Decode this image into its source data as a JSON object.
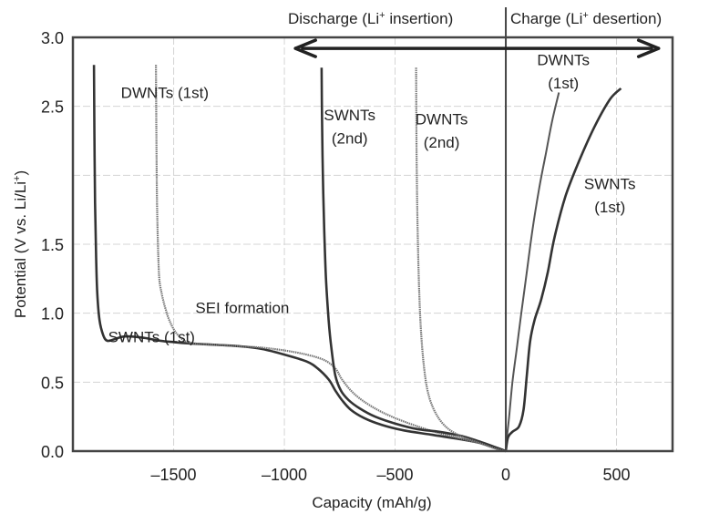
{
  "chart_data": {
    "type": "line",
    "title": "",
    "header": {
      "discharge_label": "Discharge (Li",
      "discharge_sup": "+",
      "discharge_suffix": " insertion)",
      "charge_label": "Charge (Li",
      "charge_sup": "+",
      "charge_suffix": " desertion)"
    },
    "xlabel": "Capacity (mAh/g)",
    "ylabel": "Potential (V vs. Li/Li",
    "ylabel_sup": "+",
    "ylabel_suffix": ")",
    "xlim": [
      -1955,
      753
    ],
    "ylim": [
      0.0,
      3.0
    ],
    "xticks": [
      -1500,
      -1000,
      -500,
      0,
      500
    ],
    "xtick_labels": [
      "–1500",
      "–1000",
      "–500",
      "0",
      "500"
    ],
    "yticks": [
      0.0,
      0.5,
      1.0,
      1.5,
      2.0,
      2.5,
      3.0
    ],
    "ytick_labels": [
      "0.0",
      "0.5",
      "1.0",
      "1.5",
      "",
      "2.5",
      "3.0"
    ],
    "grid": true,
    "divider_x": 0,
    "arrow": {
      "from": -950,
      "to": 690,
      "y": 2.92
    },
    "series": [
      {
        "name": "SWNTs (1st) discharge",
        "style": "dark",
        "points": [
          [
            -1860,
            2.8
          ],
          [
            -1858,
            2.3
          ],
          [
            -1855,
            1.8
          ],
          [
            -1850,
            1.4
          ],
          [
            -1845,
            1.15
          ],
          [
            -1835,
            0.95
          ],
          [
            -1818,
            0.84
          ],
          [
            -1800,
            0.8
          ],
          [
            -1770,
            0.81
          ],
          [
            -1730,
            0.83
          ],
          [
            -1680,
            0.83
          ],
          [
            -1630,
            0.82
          ],
          [
            -1560,
            0.8
          ],
          [
            -1500,
            0.79
          ],
          [
            -1420,
            0.78
          ],
          [
            -1300,
            0.77
          ],
          [
            -1200,
            0.76
          ],
          [
            -1100,
            0.74
          ],
          [
            -1000,
            0.7
          ],
          [
            -900,
            0.65
          ],
          [
            -850,
            0.6
          ],
          [
            -800,
            0.52
          ],
          [
            -770,
            0.44
          ],
          [
            -740,
            0.37
          ],
          [
            -700,
            0.3
          ],
          [
            -640,
            0.24
          ],
          [
            -560,
            0.19
          ],
          [
            -460,
            0.15
          ],
          [
            -340,
            0.12
          ],
          [
            -220,
            0.09
          ],
          [
            -120,
            0.06
          ],
          [
            -40,
            0.02
          ],
          [
            0,
            0.0
          ]
        ]
      },
      {
        "name": "DWNTs (1st) discharge",
        "style": "dotted",
        "points": [
          [
            -1580,
            2.8
          ],
          [
            -1578,
            2.3
          ],
          [
            -1575,
            1.8
          ],
          [
            -1570,
            1.45
          ],
          [
            -1565,
            1.25
          ],
          [
            -1555,
            1.15
          ],
          [
            -1540,
            1.05
          ],
          [
            -1520,
            0.95
          ],
          [
            -1490,
            0.86
          ],
          [
            -1450,
            0.8
          ],
          [
            -1400,
            0.78
          ],
          [
            -1300,
            0.77
          ],
          [
            -1200,
            0.76
          ],
          [
            -1100,
            0.75
          ],
          [
            -1000,
            0.73
          ],
          [
            -900,
            0.7
          ],
          [
            -820,
            0.66
          ],
          [
            -770,
            0.6
          ],
          [
            -740,
            0.52
          ],
          [
            -700,
            0.44
          ],
          [
            -650,
            0.37
          ],
          [
            -580,
            0.3
          ],
          [
            -500,
            0.24
          ],
          [
            -400,
            0.18
          ],
          [
            -300,
            0.13
          ],
          [
            -200,
            0.09
          ],
          [
            -100,
            0.05
          ],
          [
            -30,
            0.02
          ],
          [
            0,
            0.0
          ]
        ]
      },
      {
        "name": "SWNTs (2nd) discharge",
        "style": "dark",
        "points": [
          [
            -832,
            2.78
          ],
          [
            -830,
            2.4
          ],
          [
            -826,
            2.0
          ],
          [
            -820,
            1.6
          ],
          [
            -812,
            1.25
          ],
          [
            -800,
            0.95
          ],
          [
            -788,
            0.75
          ],
          [
            -770,
            0.55
          ],
          [
            -745,
            0.44
          ],
          [
            -710,
            0.37
          ],
          [
            -660,
            0.31
          ],
          [
            -590,
            0.25
          ],
          [
            -500,
            0.2
          ],
          [
            -400,
            0.16
          ],
          [
            -300,
            0.14
          ],
          [
            -200,
            0.11
          ],
          [
            -120,
            0.07
          ],
          [
            -50,
            0.03
          ],
          [
            0,
            0.0
          ]
        ]
      },
      {
        "name": "DWNTs (2nd) discharge",
        "style": "dotted",
        "points": [
          [
            -405,
            2.78
          ],
          [
            -404,
            2.4
          ],
          [
            -402,
            2.0
          ],
          [
            -398,
            1.6
          ],
          [
            -392,
            1.2
          ],
          [
            -384,
            0.9
          ],
          [
            -372,
            0.65
          ],
          [
            -355,
            0.45
          ],
          [
            -330,
            0.32
          ],
          [
            -295,
            0.22
          ],
          [
            -250,
            0.15
          ],
          [
            -190,
            0.1
          ],
          [
            -120,
            0.06
          ],
          [
            -50,
            0.02
          ],
          [
            0,
            0.0
          ]
        ]
      },
      {
        "name": "DWNTs (1st) charge",
        "style": "light",
        "points": [
          [
            0,
            0.0
          ],
          [
            5,
            0.1
          ],
          [
            15,
            0.25
          ],
          [
            30,
            0.5
          ],
          [
            50,
            0.75
          ],
          [
            70,
            1.0
          ],
          [
            95,
            1.3
          ],
          [
            120,
            1.6
          ],
          [
            150,
            1.9
          ],
          [
            180,
            2.15
          ],
          [
            210,
            2.4
          ],
          [
            240,
            2.6
          ]
        ]
      },
      {
        "name": "SWNTs (1st) charge",
        "style": "dark",
        "points": [
          [
            0,
            0.0
          ],
          [
            10,
            0.1
          ],
          [
            30,
            0.14
          ],
          [
            60,
            0.18
          ],
          [
            80,
            0.3
          ],
          [
            95,
            0.55
          ],
          [
            110,
            0.8
          ],
          [
            130,
            0.95
          ],
          [
            160,
            1.1
          ],
          [
            190,
            1.3
          ],
          [
            220,
            1.55
          ],
          [
            270,
            1.85
          ],
          [
            330,
            2.1
          ],
          [
            400,
            2.35
          ],
          [
            470,
            2.55
          ],
          [
            520,
            2.63
          ]
        ]
      }
    ],
    "annotations": [
      {
        "text": "DWNTs (1st)",
        "x": -1540,
        "y": 2.56
      },
      {
        "text": "SWNTs",
        "x": -705,
        "y": 2.4
      },
      {
        "text": "(2nd)",
        "x": -705,
        "y": 2.23
      },
      {
        "text": "DWNTs",
        "x": -290,
        "y": 2.37
      },
      {
        "text": "(2nd)",
        "x": -290,
        "y": 2.2
      },
      {
        "text": "DWNTs",
        "x": 260,
        "y": 2.8
      },
      {
        "text": "(1st)",
        "x": 260,
        "y": 2.63
      },
      {
        "text": "SWNTs",
        "x": 470,
        "y": 1.9
      },
      {
        "text": "(1st)",
        "x": 470,
        "y": 1.73
      },
      {
        "text": "SEI formation",
        "x": -1190,
        "y": 1.0
      },
      {
        "text": "SWNTs (1st)",
        "x": -1600,
        "y": 0.79
      }
    ]
  }
}
